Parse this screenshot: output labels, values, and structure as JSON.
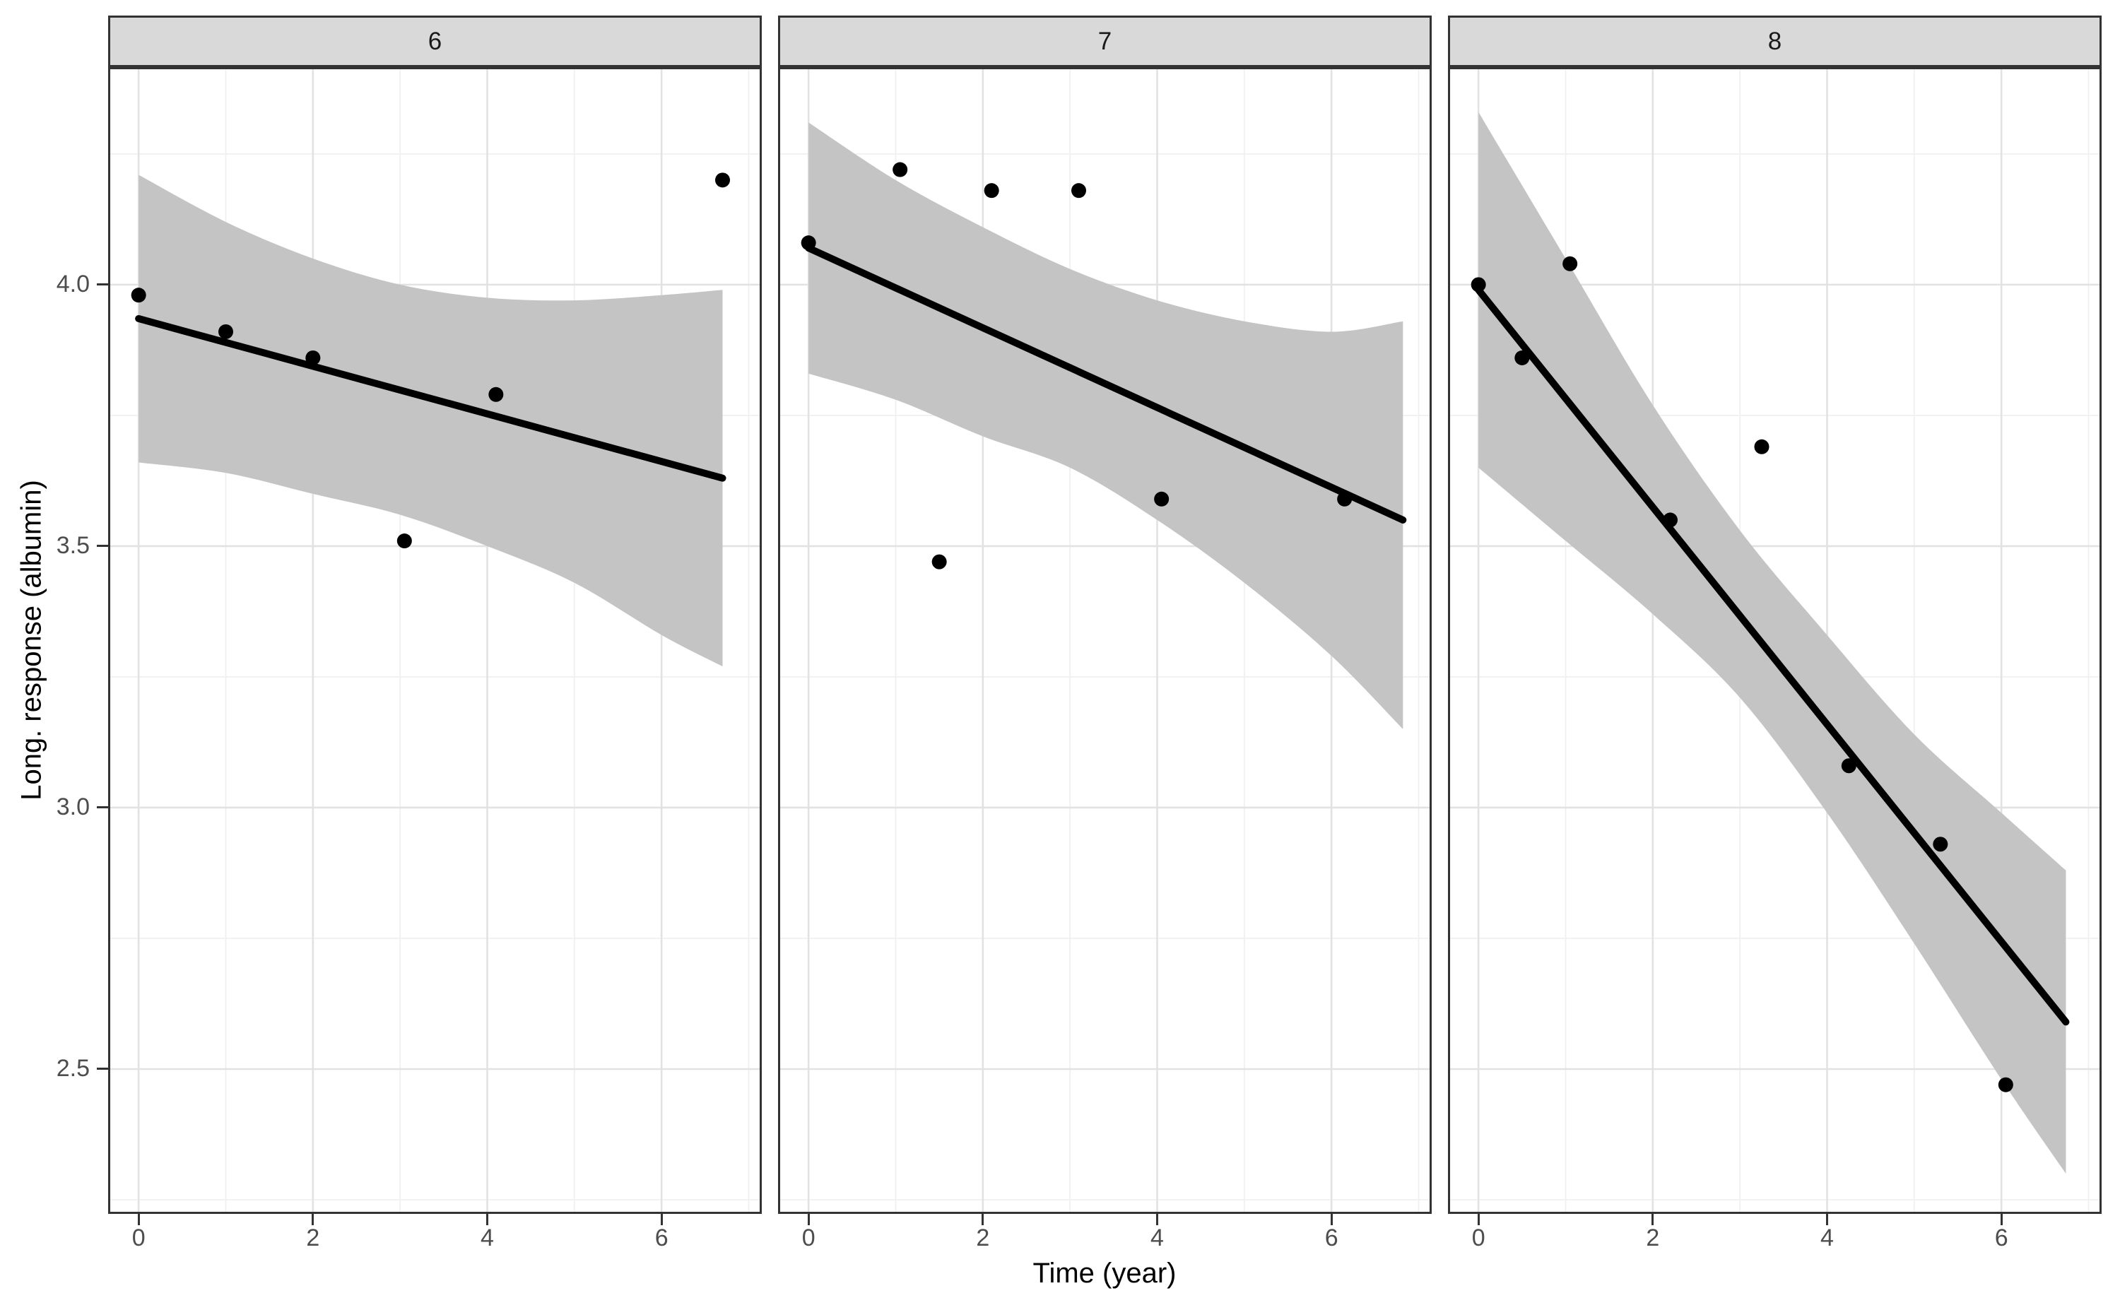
{
  "chart_data": {
    "type": "scatter",
    "title": "",
    "xlabel": "Time (year)",
    "ylabel": "Long. response (albumin)",
    "legend": "none",
    "grid": true,
    "x_domain": [
      -0.35,
      7.15
    ],
    "y_domain": [
      2.223,
      4.416
    ],
    "x_ticks": [
      0,
      2,
      4,
      6
    ],
    "x_tick_labels": [
      "0",
      "2",
      "4",
      "6"
    ],
    "x_minor": [
      1,
      3,
      5,
      7
    ],
    "y_ticks": [
      4.0,
      3.5,
      3.0,
      2.5
    ],
    "y_tick_labels": [
      "4.0",
      "3.5",
      "3.0",
      "2.5"
    ],
    "y_minor": [
      4.25,
      3.75,
      3.25,
      2.75,
      2.25
    ],
    "facets": [
      {
        "label": "6",
        "points": [
          [
            0,
            3.98
          ],
          [
            1,
            3.91
          ],
          [
            2,
            3.86
          ],
          [
            3.05,
            3.51
          ],
          [
            4.1,
            3.79
          ],
          [
            6.7,
            4.2
          ]
        ],
        "line": {
          "x": [
            0,
            6.7
          ],
          "y": [
            3.935,
            3.63
          ]
        },
        "ribbon": {
          "x": [
            0,
            1,
            2,
            3,
            4,
            5,
            6,
            6.7
          ],
          "upper": [
            4.21,
            4.12,
            4.05,
            4.0,
            3.975,
            3.97,
            3.98,
            3.99
          ],
          "lower": [
            3.66,
            3.64,
            3.6,
            3.56,
            3.5,
            3.43,
            3.33,
            3.27
          ]
        }
      },
      {
        "label": "7",
        "points": [
          [
            0,
            4.08
          ],
          [
            1.05,
            4.22
          ],
          [
            1.5,
            3.47
          ],
          [
            2.1,
            4.18
          ],
          [
            3.1,
            4.18
          ],
          [
            4.05,
            3.59
          ],
          [
            6.15,
            3.59
          ]
        ],
        "line": {
          "x": [
            0,
            6.82
          ],
          "y": [
            4.07,
            3.55
          ]
        },
        "ribbon": {
          "x": [
            0,
            1,
            2,
            3,
            4,
            5,
            6,
            6.82
          ],
          "upper": [
            4.31,
            4.2,
            4.11,
            4.03,
            3.97,
            3.93,
            3.91,
            3.93
          ],
          "lower": [
            3.83,
            3.78,
            3.71,
            3.65,
            3.55,
            3.43,
            3.29,
            3.15
          ]
        }
      },
      {
        "label": "8",
        "points": [
          [
            0,
            4.0
          ],
          [
            0.5,
            3.86
          ],
          [
            1.05,
            4.04
          ],
          [
            2.2,
            3.55
          ],
          [
            3.25,
            3.69
          ],
          [
            4.25,
            3.08
          ],
          [
            5.3,
            2.93
          ],
          [
            6.05,
            2.47
          ]
        ],
        "line": {
          "x": [
            0,
            6.74
          ],
          "y": [
            3.99,
            2.59
          ]
        },
        "ribbon": {
          "x": [
            0,
            1,
            2,
            3,
            4,
            5,
            6,
            6.74
          ],
          "upper": [
            4.33,
            4.05,
            3.77,
            3.53,
            3.33,
            3.14,
            2.99,
            2.88
          ],
          "lower": [
            3.65,
            3.51,
            3.37,
            3.21,
            2.99,
            2.74,
            2.48,
            2.3
          ]
        }
      }
    ],
    "colors": {
      "point": "#000000",
      "line": "#000000",
      "ribbon": "#c4c4c4",
      "grid_major": "#e2e2e2",
      "grid_minor": "#f0f0f0",
      "panel_border": "#333333",
      "strip_fill": "#d9d9d9",
      "strip_border": "#333333",
      "tick_text": "#4d4d4d",
      "title_text": "#000000",
      "background": "#ffffff"
    }
  }
}
